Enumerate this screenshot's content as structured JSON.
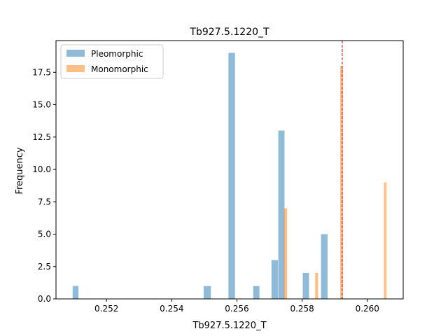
{
  "chart_data": {
    "type": "histogram",
    "title": "Tb927.5.1220_T",
    "xlabel": "Tb927.5.1220_T",
    "ylabel": "Frequency",
    "xlim": [
      0.25045,
      0.2611
    ],
    "ylim": [
      0,
      19.95
    ],
    "x_ticks": [
      0.252,
      0.254,
      0.256,
      0.258,
      0.26
    ],
    "x_tick_labels": [
      "0.252",
      "0.254",
      "0.256",
      "0.258",
      "0.260"
    ],
    "y_ticks": [
      0.0,
      2.5,
      5.0,
      7.5,
      10.0,
      12.5,
      15.0,
      17.5
    ],
    "y_tick_labels": [
      "0.0",
      "2.5",
      "5.0",
      "7.5",
      "10.0",
      "12.5",
      "15.0",
      "17.5"
    ],
    "legend_position": "upper-left",
    "series": [
      {
        "name": "Pleomorphic",
        "color": "#1f77b4",
        "alpha": 0.5,
        "bins": [
          {
            "x0": 0.25096,
            "x1": 0.25114,
            "count": 1
          },
          {
            "x0": 0.25498,
            "x1": 0.2552,
            "count": 1
          },
          {
            "x0": 0.25574,
            "x1": 0.25594,
            "count": 19
          },
          {
            "x0": 0.2565,
            "x1": 0.25669,
            "count": 1
          },
          {
            "x0": 0.25706,
            "x1": 0.25726,
            "count": 3
          },
          {
            "x0": 0.25727,
            "x1": 0.25746,
            "count": 13
          },
          {
            "x0": 0.25802,
            "x1": 0.25821,
            "count": 2
          },
          {
            "x0": 0.25858,
            "x1": 0.25878,
            "count": 5
          }
        ]
      },
      {
        "name": "Monomorphic",
        "color": "#ff7f0e",
        "alpha": 0.5,
        "bins": [
          {
            "x0": 0.25744,
            "x1": 0.25754,
            "count": 7
          },
          {
            "x0": 0.2584,
            "x1": 0.25849,
            "count": 2
          },
          {
            "x0": 0.25917,
            "x1": 0.25925,
            "count": 18
          },
          {
            "x0": 0.26051,
            "x1": 0.26059,
            "count": 9
          }
        ]
      }
    ],
    "reference_line": {
      "x": 0.25923,
      "color": "#d62728",
      "style": "dashed"
    }
  }
}
